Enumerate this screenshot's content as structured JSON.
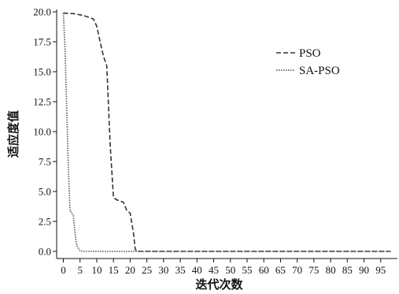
{
  "chart_data": {
    "type": "line",
    "title": "",
    "xlabel": "迭代次数",
    "ylabel": "适应度值",
    "xlim": [
      -2,
      100
    ],
    "ylim": [
      -0.6,
      20.2
    ],
    "x_ticks": [
      0,
      5,
      10,
      15,
      20,
      25,
      30,
      35,
      40,
      45,
      50,
      55,
      60,
      65,
      70,
      75,
      80,
      85,
      90,
      95
    ],
    "y_ticks": [
      0.0,
      2.5,
      5.0,
      7.5,
      10.0,
      12.5,
      15.0,
      17.5,
      20.0
    ],
    "y_tick_labels": [
      "0.0",
      "2.5",
      "5.0",
      "7.5",
      "10.0",
      "12.5",
      "15.0",
      "17.5",
      "20.0"
    ],
    "grid": false,
    "legend_position": "top-right",
    "series": [
      {
        "name": "PSO",
        "style": "dashed",
        "color": "#333333",
        "points": [
          [
            0,
            19.9
          ],
          [
            3,
            19.85
          ],
          [
            6,
            19.7
          ],
          [
            9,
            19.4
          ],
          [
            10,
            18.8
          ],
          [
            11,
            17.5
          ],
          [
            12,
            16.3
          ],
          [
            13,
            15.5
          ],
          [
            14,
            9.0
          ],
          [
            15,
            4.5
          ],
          [
            16,
            4.3
          ],
          [
            17,
            4.2
          ],
          [
            18,
            4.1
          ],
          [
            19,
            3.4
          ],
          [
            20,
            3.2
          ],
          [
            21,
            1.5
          ],
          [
            21.5,
            0.2
          ],
          [
            22,
            0.0
          ],
          [
            25,
            0.0
          ],
          [
            50,
            0.0
          ],
          [
            75,
            0.0
          ],
          [
            98,
            0.0
          ]
        ]
      },
      {
        "name": "SA-PSO",
        "style": "dotted",
        "color": "#666666",
        "points": [
          [
            0,
            19.9
          ],
          [
            0.5,
            17.0
          ],
          [
            1,
            12.0
          ],
          [
            1.5,
            7.0
          ],
          [
            2,
            3.4
          ],
          [
            2.5,
            3.2
          ],
          [
            3,
            3.0
          ],
          [
            3.5,
            1.5
          ],
          [
            4,
            0.5
          ],
          [
            5,
            0.05
          ],
          [
            6,
            0.0
          ],
          [
            10,
            0.0
          ],
          [
            25,
            0.0
          ],
          [
            50,
            0.0
          ],
          [
            75,
            0.0
          ],
          [
            98,
            0.0
          ]
        ]
      }
    ]
  }
}
